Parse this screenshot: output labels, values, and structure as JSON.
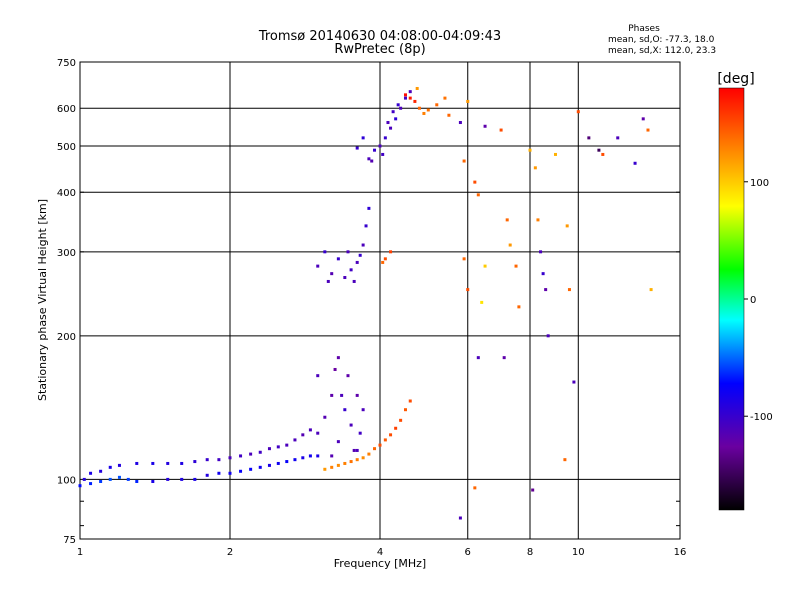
{
  "chart_data": {
    "type": "scatter",
    "title": "Tromsø 20140630 04:08:00-04:09:43",
    "subtitle": "RwPretec (8p)",
    "xlabel": "Frequency [MHz]",
    "ylabel": "Stationary phase Virtual Height [km]",
    "x_scale": "log",
    "y_scale": "log",
    "xlim": [
      1,
      16
    ],
    "ylim": [
      75,
      750
    ],
    "x_ticks": [
      1,
      2,
      4,
      6,
      8,
      10,
      16
    ],
    "x_tick_labels": [
      "1",
      "2",
      "4",
      "6",
      "8",
      "10",
      "16"
    ],
    "y_ticks": [
      75,
      100,
      200,
      300,
      400,
      500,
      600,
      750
    ],
    "y_tick_labels": [
      "75",
      "100",
      "200",
      "300",
      "400",
      "500",
      "600",
      "750"
    ],
    "grid": true,
    "phases_box": {
      "heading": "Phases",
      "line_o": "mean, sd,O: -77.3, 18.0",
      "line_x": "mean, sd,X: 112.0, 23.3"
    },
    "colorbar": {
      "label": "[deg]",
      "range": [
        -180,
        180
      ],
      "ticks": [
        100,
        0,
        -100
      ],
      "tick_labels": [
        "100",
        "0",
        "-100"
      ]
    },
    "series": [
      {
        "name": "O-mode trace (blue)",
        "points": [
          [
            1.02,
            100,
            -90
          ],
          [
            1.05,
            103,
            -85
          ],
          [
            1.1,
            104,
            -90
          ],
          [
            1.15,
            106,
            -85
          ],
          [
            1.2,
            107,
            -90
          ],
          [
            1.3,
            108,
            -88
          ],
          [
            1.4,
            108,
            -85
          ],
          [
            1.5,
            108,
            -90
          ],
          [
            1.6,
            108,
            -88
          ],
          [
            1.7,
            109,
            -95
          ],
          [
            1.8,
            110,
            -100
          ],
          [
            1.9,
            110,
            -105
          ],
          [
            2.0,
            111,
            -110
          ],
          [
            2.1,
            112,
            -105
          ],
          [
            2.2,
            113,
            -110
          ],
          [
            2.3,
            114,
            -105
          ],
          [
            2.4,
            116,
            -110
          ],
          [
            2.5,
            117,
            -105
          ],
          [
            2.6,
            118,
            -110
          ],
          [
            2.7,
            121,
            -110
          ],
          [
            2.8,
            124,
            -115
          ],
          [
            2.9,
            127,
            -110
          ],
          [
            3.0,
            125,
            -110
          ],
          [
            3.1,
            135,
            -115
          ],
          [
            3.2,
            150,
            -120
          ],
          [
            3.25,
            170,
            -125
          ],
          [
            3.3,
            180,
            -120
          ],
          [
            3.35,
            150,
            -110
          ],
          [
            3.4,
            140,
            -100
          ],
          [
            3.5,
            130,
            -110
          ],
          [
            3.6,
            150,
            -120
          ],
          [
            3.65,
            125,
            -105
          ],
          [
            3.7,
            140,
            -110
          ],
          [
            3.55,
            115,
            -115
          ],
          [
            3.3,
            120,
            -110
          ],
          [
            3.45,
            165,
            -120
          ],
          [
            3.2,
            112,
            -115
          ],
          [
            3.6,
            115,
            -110
          ],
          [
            3.0,
            165,
            -110
          ],
          [
            3.0,
            280,
            -110
          ],
          [
            3.1,
            300,
            -100
          ],
          [
            3.2,
            270,
            -115
          ],
          [
            3.3,
            290,
            -100
          ],
          [
            3.4,
            265,
            -110
          ],
          [
            3.5,
            275,
            -105
          ],
          [
            3.6,
            285,
            -110
          ],
          [
            3.65,
            295,
            -100
          ],
          [
            3.7,
            310,
            -110
          ],
          [
            3.75,
            340,
            -100
          ],
          [
            3.8,
            370,
            -95
          ],
          [
            3.15,
            260,
            -110
          ],
          [
            3.45,
            300,
            -110
          ],
          [
            3.55,
            260,
            -110
          ],
          [
            3.8,
            470,
            -110
          ],
          [
            3.9,
            490,
            -100
          ],
          [
            4.0,
            500,
            -110
          ],
          [
            4.1,
            520,
            -100
          ],
          [
            4.2,
            545,
            -110
          ],
          [
            4.3,
            570,
            -95
          ],
          [
            4.4,
            600,
            -110
          ],
          [
            4.5,
            630,
            -105
          ],
          [
            4.6,
            650,
            -110
          ],
          [
            3.85,
            465,
            -115
          ],
          [
            4.05,
            480,
            -105
          ],
          [
            4.15,
            560,
            -110
          ],
          [
            4.35,
            610,
            -100
          ],
          [
            4.25,
            590,
            -105
          ],
          [
            3.7,
            520,
            -95
          ],
          [
            3.6,
            495,
            -100
          ]
        ]
      },
      {
        "name": "X-mode trace (orange)",
        "points": [
          [
            1.0,
            97,
            -70
          ],
          [
            1.05,
            98,
            -65
          ],
          [
            1.1,
            99,
            -60
          ],
          [
            1.15,
            100,
            -55
          ],
          [
            1.2,
            101,
            -55
          ],
          [
            1.25,
            100,
            -60
          ],
          [
            1.3,
            99,
            -65
          ],
          [
            1.4,
            99,
            -85
          ],
          [
            1.5,
            100,
            -90
          ],
          [
            1.6,
            100,
            -88
          ],
          [
            1.7,
            100,
            -85
          ],
          [
            1.8,
            102,
            -90
          ],
          [
            1.9,
            103,
            -80
          ],
          [
            2.0,
            103,
            -80
          ],
          [
            2.1,
            104,
            -75
          ],
          [
            2.2,
            105,
            -75
          ],
          [
            2.3,
            106,
            -80
          ],
          [
            2.4,
            107,
            -85
          ],
          [
            2.5,
            108,
            -80
          ],
          [
            2.6,
            109,
            -75
          ],
          [
            2.7,
            110,
            -80
          ],
          [
            2.8,
            111,
            -85
          ],
          [
            2.9,
            112,
            -80
          ],
          [
            3.0,
            112,
            -85
          ],
          [
            3.1,
            105,
            120
          ],
          [
            3.2,
            106,
            130
          ],
          [
            3.3,
            107,
            125
          ],
          [
            3.4,
            108,
            130
          ],
          [
            3.5,
            109,
            135
          ],
          [
            3.6,
            110,
            130
          ],
          [
            3.7,
            111,
            125
          ],
          [
            3.8,
            113,
            130
          ],
          [
            3.9,
            116,
            140
          ],
          [
            4.0,
            118,
            150
          ],
          [
            4.1,
            121,
            145
          ],
          [
            4.2,
            124,
            150
          ],
          [
            4.3,
            128,
            155
          ],
          [
            4.4,
            133,
            150
          ],
          [
            4.5,
            140,
            145
          ],
          [
            4.6,
            146,
            150
          ],
          [
            4.1,
            290,
            150
          ],
          [
            4.2,
            300,
            155
          ],
          [
            4.05,
            285,
            140
          ],
          [
            4.5,
            640,
            175
          ],
          [
            4.6,
            630,
            170
          ],
          [
            4.7,
            620,
            165
          ],
          [
            4.8,
            600,
            140
          ],
          [
            4.9,
            585,
            130
          ],
          [
            5.0,
            595,
            135
          ],
          [
            5.2,
            610,
            140
          ],
          [
            5.4,
            630,
            135
          ],
          [
            4.75,
            660,
            120
          ]
        ]
      },
      {
        "name": "Scattered echoes",
        "points": [
          [
            5.8,
            560,
            -110
          ],
          [
            5.9,
            465,
            140
          ],
          [
            5.9,
            290,
            140
          ],
          [
            6.0,
            250,
            150
          ],
          [
            6.2,
            420,
            150
          ],
          [
            6.3,
            395,
            140
          ],
          [
            6.4,
            235,
            90
          ],
          [
            6.5,
            280,
            100
          ],
          [
            6.5,
            550,
            -120
          ],
          [
            6.3,
            180,
            -110
          ],
          [
            7.0,
            540,
            150
          ],
          [
            7.2,
            350,
            140
          ],
          [
            7.3,
            310,
            120
          ],
          [
            7.5,
            280,
            140
          ],
          [
            7.6,
            230,
            140
          ],
          [
            8.0,
            490,
            110
          ],
          [
            8.2,
            450,
            120
          ],
          [
            8.3,
            350,
            130
          ],
          [
            8.4,
            300,
            -110
          ],
          [
            8.5,
            270,
            -100
          ],
          [
            8.6,
            250,
            -120
          ],
          [
            8.7,
            200,
            -110
          ],
          [
            9.0,
            480,
            110
          ],
          [
            9.5,
            340,
            120
          ],
          [
            9.6,
            250,
            140
          ],
          [
            9.8,
            160,
            -110
          ],
          [
            10.0,
            590,
            150
          ],
          [
            10.5,
            520,
            -140
          ],
          [
            11.0,
            490,
            -150
          ],
          [
            11.2,
            480,
            150
          ],
          [
            12.0,
            520,
            -110
          ],
          [
            13.0,
            460,
            -100
          ],
          [
            13.5,
            570,
            -120
          ],
          [
            13.8,
            540,
            140
          ],
          [
            14.0,
            250,
            110
          ],
          [
            5.5,
            580,
            140
          ],
          [
            6.0,
            620,
            120
          ],
          [
            7.1,
            180,
            -120
          ],
          [
            8.1,
            95,
            -130
          ],
          [
            5.8,
            83,
            -110
          ],
          [
            6.2,
            96,
            140
          ],
          [
            9.4,
            110,
            140
          ]
        ]
      }
    ]
  }
}
